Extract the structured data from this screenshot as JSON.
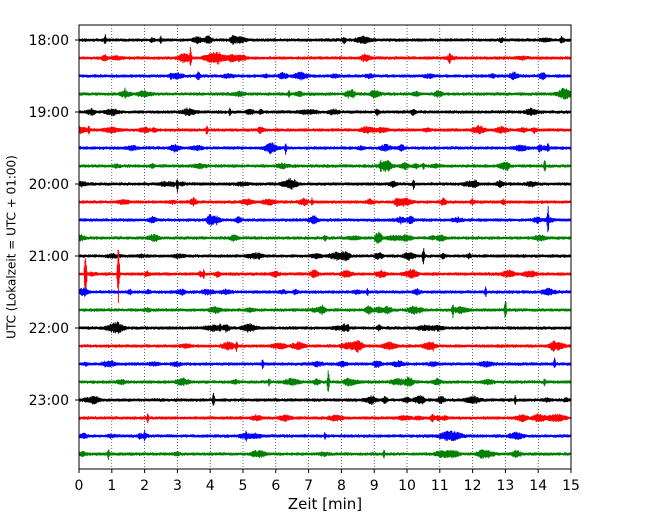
{
  "chart_data": {
    "type": "line",
    "title": "",
    "xlabel": "Zeit  [min]",
    "ylabel": "UTC (Lokalzeit = UTC + 01:00)",
    "xlim": [
      0,
      15
    ],
    "x_ticks": [
      0,
      1,
      2,
      3,
      4,
      5,
      6,
      7,
      8,
      9,
      10,
      11,
      12,
      13,
      14,
      15
    ],
    "x_tick_labels": [
      "0",
      "1",
      "2",
      "3",
      "4",
      "5",
      "6",
      "7",
      "8",
      "9",
      "10",
      "11",
      "12",
      "13",
      "14",
      "15"
    ],
    "y_tick_labels": [
      "18:00",
      "19:00",
      "20:00",
      "21:00",
      "22:00",
      "23:00"
    ],
    "trace_interval_minutes": 15,
    "grid": "vertical dotted",
    "trace_colors": [
      "#000000",
      "#ff0000",
      "#0000ff",
      "#008000"
    ],
    "series": [
      {
        "start": "18:00",
        "color": "#000000",
        "spikes": [
          [
            0.8,
            6
          ],
          [
            2.5,
            4
          ]
        ]
      },
      {
        "start": "18:15",
        "color": "#ff0000",
        "spikes": [
          [
            3.4,
            12
          ],
          [
            11.3,
            8
          ]
        ]
      },
      {
        "start": "18:30",
        "color": "#0000ff",
        "spikes": [
          [
            2.8,
            4
          ]
        ]
      },
      {
        "start": "18:45",
        "color": "#008000",
        "spikes": [
          [
            1.4,
            6
          ],
          [
            6.4,
            5
          ]
        ]
      },
      {
        "start": "19:00",
        "color": "#000000",
        "spikes": [
          [
            4.6,
            4
          ]
        ]
      },
      {
        "start": "19:15",
        "color": "#ff0000",
        "spikes": [
          [
            0.3,
            6
          ],
          [
            3.9,
            6
          ]
        ]
      },
      {
        "start": "19:30",
        "color": "#0000ff",
        "spikes": [
          [
            6.3,
            6
          ],
          [
            14.3,
            6
          ]
        ]
      },
      {
        "start": "19:45",
        "color": "#008000",
        "spikes": [
          [
            9.2,
            7
          ],
          [
            10.5,
            5
          ],
          [
            14.2,
            6
          ]
        ]
      },
      {
        "start": "20:00",
        "color": "#000000",
        "spikes": [
          [
            3.0,
            8
          ],
          [
            10.2,
            6
          ]
        ]
      },
      {
        "start": "20:15",
        "color": "#ff0000",
        "spikes": [
          [
            7.1,
            4
          ]
        ]
      },
      {
        "start": "20:30",
        "color": "#0000ff",
        "spikes": [
          [
            4.2,
            5
          ],
          [
            14.3,
            14
          ],
          [
            9.8,
            5
          ]
        ]
      },
      {
        "start": "20:45",
        "color": "#008000",
        "spikes": [
          [
            9.2,
            6
          ]
        ]
      },
      {
        "start": "21:00",
        "color": "#000000",
        "spikes": [
          [
            10.5,
            10
          ],
          [
            5.5,
            4
          ]
        ]
      },
      {
        "start": "21:15",
        "color": "#ff0000",
        "spikes": [
          [
            0.2,
            28
          ],
          [
            1.2,
            30
          ],
          [
            3.8,
            5
          ]
        ]
      },
      {
        "start": "21:30",
        "color": "#0000ff",
        "spikes": [
          [
            8.8,
            4
          ],
          [
            12.4,
            5
          ]
        ]
      },
      {
        "start": "21:45",
        "color": "#008000",
        "spikes": [
          [
            11.4,
            8
          ],
          [
            13.0,
            12
          ]
        ]
      },
      {
        "start": "22:00",
        "color": "#000000",
        "spikes": [
          [
            4.3,
            5
          ],
          [
            8.2,
            5
          ]
        ]
      },
      {
        "start": "22:15",
        "color": "#ff0000",
        "spikes": [
          [
            4.8,
            6
          ],
          [
            10.8,
            5
          ]
        ]
      },
      {
        "start": "22:30",
        "color": "#0000ff",
        "spikes": [
          [
            5.6,
            5
          ],
          [
            14.5,
            6
          ]
        ]
      },
      {
        "start": "22:45",
        "color": "#008000",
        "spikes": [
          [
            7.6,
            12
          ],
          [
            5.8,
            5
          ],
          [
            14.2,
            5
          ]
        ]
      },
      {
        "start": "23:00",
        "color": "#000000",
        "spikes": [
          [
            4.1,
            10
          ],
          [
            13.3,
            5
          ]
        ]
      },
      {
        "start": "23:15",
        "color": "#ff0000",
        "spikes": [
          [
            2.1,
            5
          ],
          [
            14.0,
            4
          ]
        ]
      },
      {
        "start": "23:30",
        "color": "#0000ff",
        "spikes": [
          [
            2.0,
            6
          ],
          [
            5.1,
            6
          ],
          [
            7.5,
            4
          ]
        ]
      },
      {
        "start": "23:45",
        "color": "#008000",
        "spikes": [
          [
            0.9,
            6
          ],
          [
            9.3,
            4
          ]
        ]
      }
    ]
  }
}
